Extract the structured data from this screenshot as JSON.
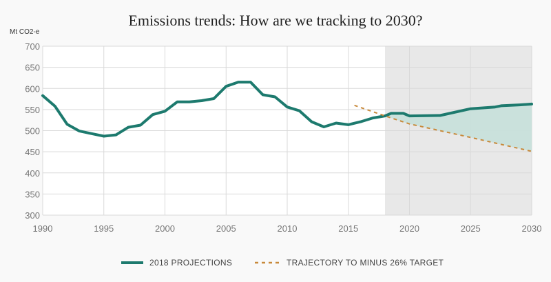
{
  "chart_data": {
    "type": "line",
    "title": "Emissions trends: How are we tracking to 2030?",
    "ylabel": "Mt CO2-e",
    "xlabel": "",
    "xlim": [
      1990,
      2030
    ],
    "ylim": [
      300,
      700
    ],
    "x_ticks": [
      1990,
      1995,
      2000,
      2005,
      2010,
      2015,
      2020,
      2025,
      2030
    ],
    "y_ticks": [
      300,
      350,
      400,
      450,
      500,
      550,
      600,
      650,
      700
    ],
    "grid": true,
    "legend_position": "bottom",
    "shaded_projection_period": [
      2018,
      2030
    ],
    "gap_fill_between": [
      "2018 PROJECTIONS",
      "TRAJECTORY TO MINUS 26% TARGET"
    ],
    "series": [
      {
        "name": "2018 PROJECTIONS",
        "style": "solid",
        "color": "#1d7a6e",
        "points": [
          [
            1990,
            583
          ],
          [
            1991,
            558
          ],
          [
            1992,
            515
          ],
          [
            1993,
            499
          ],
          [
            1994,
            493
          ],
          [
            1995,
            487
          ],
          [
            1996,
            490
          ],
          [
            1997,
            508
          ],
          [
            1998,
            513
          ],
          [
            1999,
            538
          ],
          [
            2000,
            546
          ],
          [
            2001,
            568
          ],
          [
            2002,
            568
          ],
          [
            2003,
            571
          ],
          [
            2004,
            576
          ],
          [
            2005,
            605
          ],
          [
            2006,
            615
          ],
          [
            2007,
            615
          ],
          [
            2008,
            585
          ],
          [
            2009,
            580
          ],
          [
            2010,
            556
          ],
          [
            2011,
            547
          ],
          [
            2012,
            521
          ],
          [
            2013,
            509
          ],
          [
            2014,
            518
          ],
          [
            2015,
            514
          ],
          [
            2016,
            521
          ],
          [
            2017,
            530
          ],
          [
            2018,
            535
          ],
          [
            2018.5,
            541
          ],
          [
            2019.5,
            541
          ],
          [
            2020,
            535
          ],
          [
            2022.5,
            536
          ],
          [
            2025,
            552
          ],
          [
            2027,
            556
          ],
          [
            2027.5,
            559
          ],
          [
            2029,
            561
          ],
          [
            2030,
            563
          ]
        ]
      },
      {
        "name": "TRAJECTORY TO MINUS 26% TARGET",
        "style": "dashed",
        "color": "#c8893a",
        "points": [
          [
            2015.5,
            560
          ],
          [
            2018,
            535
          ],
          [
            2020,
            516
          ],
          [
            2025,
            484
          ],
          [
            2030,
            451
          ]
        ]
      }
    ]
  },
  "colors": {
    "background": "#f9f9f9",
    "plot_background": "#ffffff",
    "shaded_region": "#e8e8e8",
    "gridline": "#d9d9d9",
    "projection_line": "#1d7a6e",
    "target_line": "#c8893a",
    "gap_fill": "#c6e0da"
  }
}
